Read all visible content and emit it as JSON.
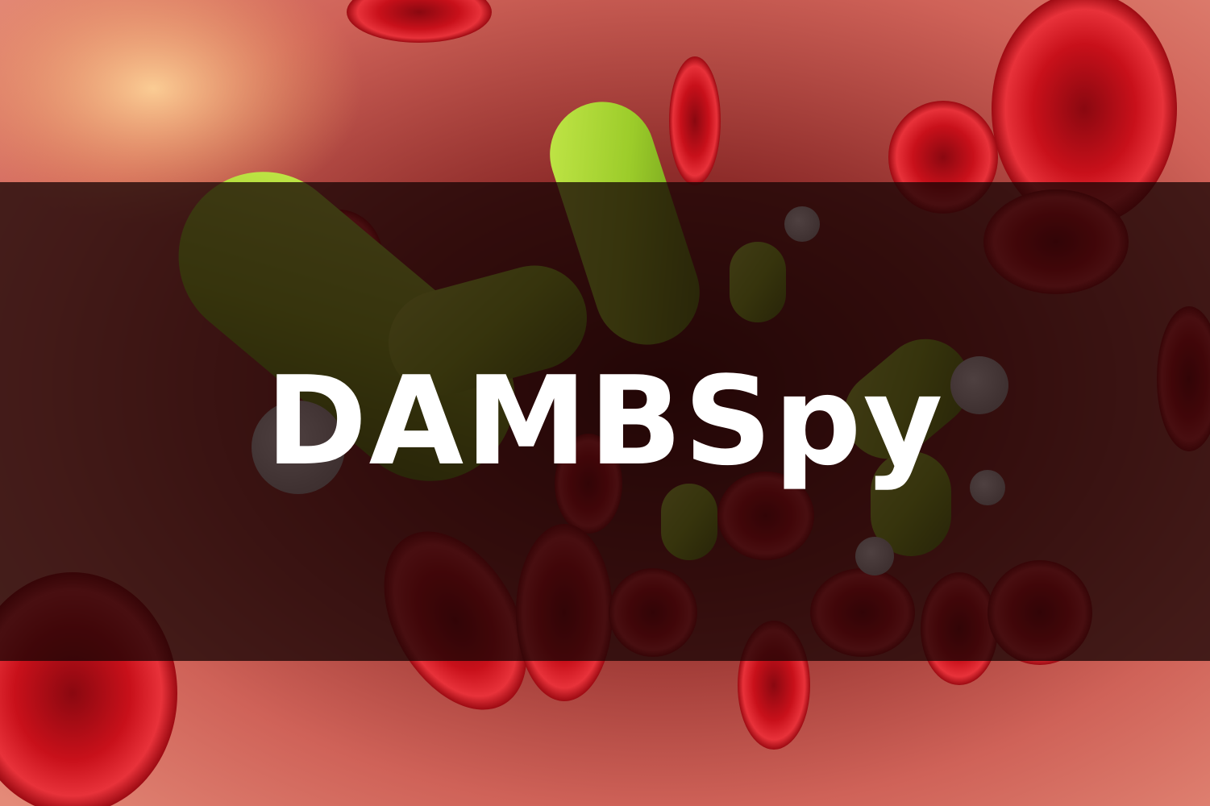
{
  "banner": {
    "title": "DAMBSpy"
  },
  "scene": {
    "subject": "blood-vessel-illustration",
    "colors": {
      "vessel_wall": "#d96a60",
      "highlight": "#f0a060",
      "red_blood_cell": "#c8101a",
      "bacteria": "#9ccc2a",
      "white_cell": "#e6e6e6",
      "overlay": "#160404"
    }
  }
}
